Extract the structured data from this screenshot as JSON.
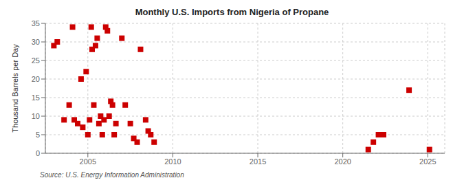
{
  "chart_data": {
    "type": "scatter",
    "title": "Monthly U.S. Imports from Nigeria of Propane",
    "ylabel": "Thousand Barrels per Day",
    "annotations": [
      "Source: U.S. Energy Information Administration"
    ],
    "x": [
      2003.0,
      2003.2,
      2003.6,
      2003.9,
      2004.1,
      2004.2,
      2004.4,
      2004.6,
      2004.7,
      2004.9,
      2005.0,
      2005.1,
      2005.2,
      2005.25,
      2005.35,
      2005.45,
      2005.55,
      2005.65,
      2005.75,
      2005.85,
      2005.95,
      2006.05,
      2006.15,
      2006.25,
      2006.35,
      2006.45,
      2006.55,
      2006.65,
      2007.0,
      2007.2,
      2007.5,
      2007.7,
      2007.9,
      2008.1,
      2008.4,
      2008.55,
      2008.7,
      2008.9,
      2021.5,
      2021.8,
      2022.1,
      2022.4,
      2023.9,
      2025.1
    ],
    "values": [
      29,
      30,
      9,
      13,
      34,
      9,
      8,
      20,
      7,
      22,
      5,
      9,
      34,
      28,
      13,
      29,
      31,
      8,
      10,
      5,
      9,
      34,
      33,
      10,
      14,
      13,
      5,
      8,
      31,
      13,
      8,
      4,
      3,
      28,
      9,
      6,
      5,
      3,
      1,
      3,
      5,
      5,
      17,
      1
    ],
    "color": "#cc0000",
    "marker": "square",
    "xlim": [
      2002.5,
      2026.0
    ],
    "xticks": [
      2005,
      2010,
      2015,
      2020,
      2025
    ],
    "ylim": [
      0,
      35
    ],
    "yticks": [
      0,
      5,
      10,
      15,
      20,
      25,
      30,
      35
    ],
    "grid": true
  }
}
